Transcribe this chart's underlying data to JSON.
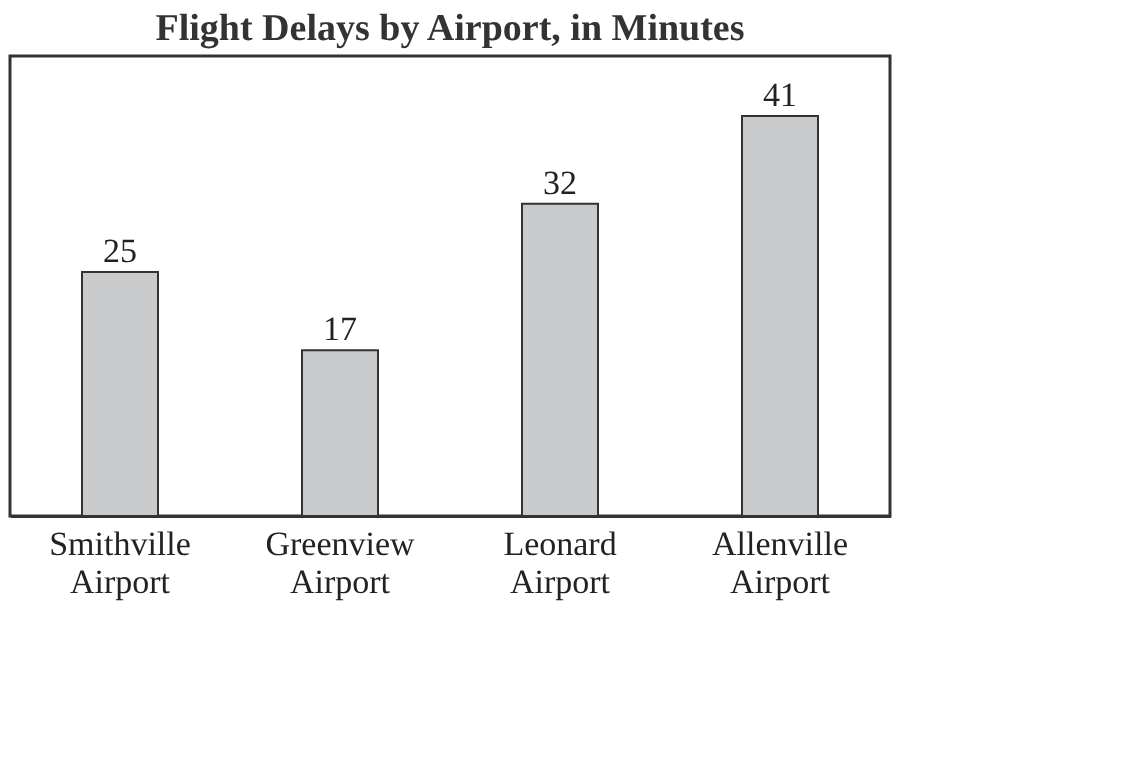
{
  "chart_data": {
    "type": "bar",
    "title": "Flight Delays by Airport, in Minutes",
    "categories": [
      "Smithville Airport",
      "Greenview Airport",
      "Leonard Airport",
      "Allenville Airport"
    ],
    "values": [
      25,
      17,
      32,
      41
    ],
    "color": "#c8cacb",
    "data_labels": true,
    "grid": false
  }
}
